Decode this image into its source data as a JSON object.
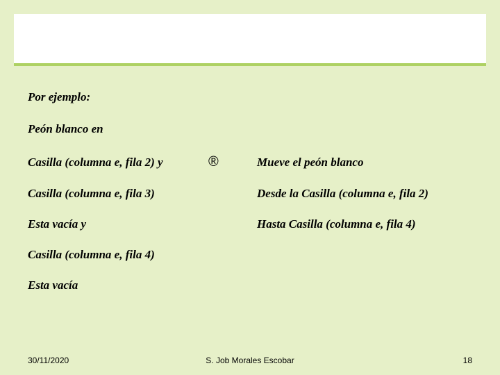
{
  "colors": {
    "background": "#e6f0c8",
    "header_band": "#ffffff",
    "accent_line": "#aed163",
    "text": "#000000"
  },
  "typography": {
    "body_family": "Times New Roman",
    "body_style": "italic bold",
    "body_size_pt": 13,
    "footer_family": "Arial",
    "footer_size_pt": 9
  },
  "intro": {
    "line1": "Por ejemplo:",
    "line2": "Peón blanco en"
  },
  "rows": [
    {
      "left": "Casilla (columna e, fila 2) y",
      "arrow": "®",
      "right": "Mueve el peón blanco"
    },
    {
      "left": "Casilla (columna e, fila 3)",
      "arrow": "",
      "right": "Desde la Casilla (columna e, fila 2)"
    },
    {
      "left": "Esta vacía  y",
      "arrow": "",
      "right": "Hasta Casilla (columna e, fila 4)"
    },
    {
      "left": "Casilla (columna e, fila 4)",
      "arrow": "",
      "right": ""
    },
    {
      "left": "Esta vacía",
      "arrow": "",
      "right": ""
    }
  ],
  "footer": {
    "date": "30/11/2020",
    "author": "S. Job Morales Escobar",
    "page": "18"
  }
}
